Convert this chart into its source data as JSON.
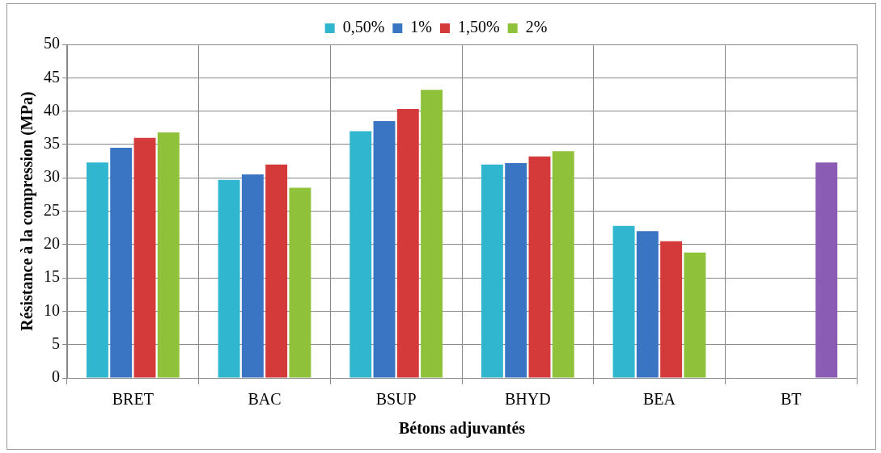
{
  "chart_data": {
    "type": "bar",
    "xlabel": "Bétons adjuvantés",
    "ylabel": "Résistance à la compression (MPa)",
    "categories": [
      "BRET",
      "BAC",
      "BSUP",
      "BHYD",
      "BEA",
      "BT"
    ],
    "series": [
      {
        "name": "0,50%",
        "color": "#31b6d0",
        "values": [
          32.3,
          29.7,
          37,
          32,
          22.8,
          null
        ]
      },
      {
        "name": "1%",
        "color": "#3a75c4",
        "values": [
          34.5,
          30.5,
          38.5,
          32.2,
          22,
          null
        ]
      },
      {
        "name": "1,50%",
        "color": "#d43a3a",
        "values": [
          36,
          32,
          40.3,
          33.2,
          20.5,
          null
        ]
      },
      {
        "name": "2%",
        "color": "#8fc23a",
        "colors": [
          "#8fc23a",
          "#8fc23a",
          "#8fc23a",
          "#8fc23a",
          "#8fc23a",
          "#8a5cb4"
        ],
        "values": [
          36.8,
          28.5,
          43.2,
          34,
          18.8,
          32.3
        ]
      }
    ],
    "ylim": [
      0,
      50
    ],
    "yticks": [
      0,
      5,
      10,
      15,
      20,
      25,
      30,
      35,
      40,
      45,
      50
    ],
    "grid": true,
    "legend": "top"
  }
}
